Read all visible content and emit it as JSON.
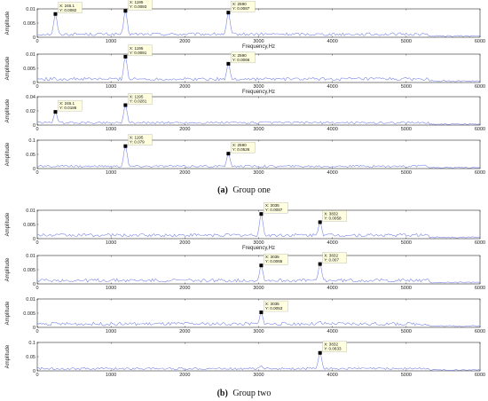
{
  "captions": [
    {
      "label": "(a)",
      "text": "Group one"
    },
    {
      "label": "(b)",
      "text": "Group two"
    }
  ],
  "colors": {
    "line": "#7b86e6",
    "marker": "#000000",
    "tip_bg": "#ffffe0",
    "grid": "#888888"
  },
  "chart_data": [
    {
      "type": "line",
      "group": "Group one",
      "ylabel": "Amplitude",
      "xlabel": "Frequency,Hz",
      "xlim": [
        0,
        6000
      ],
      "ylim": [
        0,
        0.01
      ],
      "xticks": [
        "0",
        "1000",
        "2000",
        "3000",
        "4000",
        "5000",
        "6000"
      ],
      "yticks": [
        "0",
        "0.005",
        "0.01"
      ],
      "peaks": [
        {
          "x": 246.1,
          "y": 0.0082
        },
        {
          "x": 1195,
          "y": 0.0093
        },
        {
          "x": 2590,
          "y": 0.0087
        }
      ],
      "datatips": [
        {
          "x": "X: 246.1",
          "y": "Y: 0.0082"
        },
        {
          "x": "X: 1195",
          "y": "Y: 0.0093"
        },
        {
          "x": "X: 2590",
          "y": "Y: 0.0087"
        }
      ],
      "noise": 0.0016
    },
    {
      "type": "line",
      "group": "Group one",
      "ylabel": "Amplitude",
      "xlabel": "Frequency,Hz",
      "xlim": [
        0,
        6000
      ],
      "ylim": [
        0,
        0.01
      ],
      "xticks": [
        "0",
        "1000",
        "2000",
        "3000",
        "4000",
        "5000",
        "6000"
      ],
      "yticks": [
        "0",
        "0.005",
        "0.01"
      ],
      "peaks": [
        {
          "x": 1195,
          "y": 0.0091
        },
        {
          "x": 2590,
          "y": 0.0066
        }
      ],
      "datatips": [
        {
          "x": "X: 1195",
          "y": "Y: 0.0091"
        },
        {
          "x": "X: 2590",
          "y": "Y: 0.0066"
        }
      ],
      "noise": 0.0018
    },
    {
      "type": "line",
      "group": "Group one",
      "ylabel": "Amplitude",
      "xlabel": "",
      "xlim": [
        0,
        6000
      ],
      "ylim": [
        0,
        0.04
      ],
      "xticks": [
        "0",
        "1000",
        "2000",
        "3000",
        "4000",
        "5000",
        "6000"
      ],
      "yticks": [
        "0",
        "0.02",
        "0.04"
      ],
      "peaks": [
        {
          "x": 246.1,
          "y": 0.0186
        },
        {
          "x": 1195,
          "y": 0.0281
        }
      ],
      "datatips": [
        {
          "x": "X: 246.1",
          "y": "Y: 0.0186"
        },
        {
          "x": "X: 1195",
          "y": "Y: 0.0281"
        }
      ],
      "noise": 0.005
    },
    {
      "type": "line",
      "group": "Group one",
      "ylabel": "Amplitude",
      "xlabel": "",
      "xlim": [
        0,
        6000
      ],
      "ylim": [
        0,
        0.1
      ],
      "xticks": [
        "0",
        "1000",
        "2000",
        "3000",
        "4000",
        "5000",
        "6000"
      ],
      "yticks": [
        "0",
        "0.05",
        "0.1"
      ],
      "peaks": [
        {
          "x": 1195,
          "y": 0.079
        },
        {
          "x": 2590,
          "y": 0.0526
        }
      ],
      "datatips": [
        {
          "x": "X: 1195",
          "y": "Y: 0.079"
        },
        {
          "x": "X: 2590",
          "y": "Y: 0.0526"
        }
      ],
      "noise": 0.012
    },
    {
      "type": "line",
      "group": "Group two",
      "ylabel": "Amplitude",
      "xlabel": "Frequency,Hz",
      "xlim": [
        0,
        6000
      ],
      "ylim": [
        0,
        0.01
      ],
      "xticks": [
        "0",
        "1000",
        "2000",
        "3000",
        "4000",
        "5000",
        "6000"
      ],
      "yticks": [
        "0",
        "0.005",
        "0.01"
      ],
      "peaks": [
        {
          "x": 3035,
          "y": 0.0087
        },
        {
          "x": 3832,
          "y": 0.0058
        }
      ],
      "datatips": [
        {
          "x": "X: 3035",
          "y": "Y: 0.0087"
        },
        {
          "x": "X: 3832",
          "y": "Y: 0.0058"
        }
      ],
      "noise": 0.0018
    },
    {
      "type": "line",
      "group": "Group two",
      "ylabel": "Amplitude",
      "xlabel": "",
      "xlim": [
        0,
        6000
      ],
      "ylim": [
        0,
        0.01
      ],
      "xticks": [
        "0",
        "1000",
        "2000",
        "3000",
        "4000",
        "5000",
        "6000"
      ],
      "yticks": [
        "0",
        "0.005",
        "0.01"
      ],
      "peaks": [
        {
          "x": 3035,
          "y": 0.0065
        },
        {
          "x": 3832,
          "y": 0.007
        }
      ],
      "datatips": [
        {
          "x": "X: 3035",
          "y": "Y: 0.0065"
        },
        {
          "x": "X: 3832",
          "y": "Y: 0.007"
        }
      ],
      "noise": 0.0018
    },
    {
      "type": "line",
      "group": "Group two",
      "ylabel": "Amplitude",
      "xlabel": "",
      "xlim": [
        0,
        6000
      ],
      "ylim": [
        0,
        0.01
      ],
      "xticks": [
        "0",
        "1000",
        "2000",
        "3000",
        "4000",
        "5000",
        "6000"
      ],
      "yticks": [
        "0",
        "0.005",
        "0.01"
      ],
      "peaks": [
        {
          "x": 3035,
          "y": 0.0053
        },
        {
          "x": 3832,
          "y": 0.0022
        }
      ],
      "datatips": [
        {
          "x": "X: 3035",
          "y": "Y: 0.0053"
        }
      ],
      "noise": 0.0018
    },
    {
      "type": "line",
      "group": "Group two",
      "ylabel": "Amplitude",
      "xlabel": "",
      "xlim": [
        0,
        6000
      ],
      "ylim": [
        0,
        0.1
      ],
      "xticks": [
        "0",
        "1000",
        "2000",
        "3000",
        "4000",
        "5000",
        "6000"
      ],
      "yticks": [
        "0",
        "0.05",
        "0.1"
      ],
      "peaks": [
        {
          "x": 3832,
          "y": 0.0633
        },
        {
          "x": 3035,
          "y": 0.018
        }
      ],
      "datatips": [
        {
          "x": "X: 3832",
          "y": "Y: 0.0633"
        }
      ],
      "noise": 0.012
    }
  ]
}
